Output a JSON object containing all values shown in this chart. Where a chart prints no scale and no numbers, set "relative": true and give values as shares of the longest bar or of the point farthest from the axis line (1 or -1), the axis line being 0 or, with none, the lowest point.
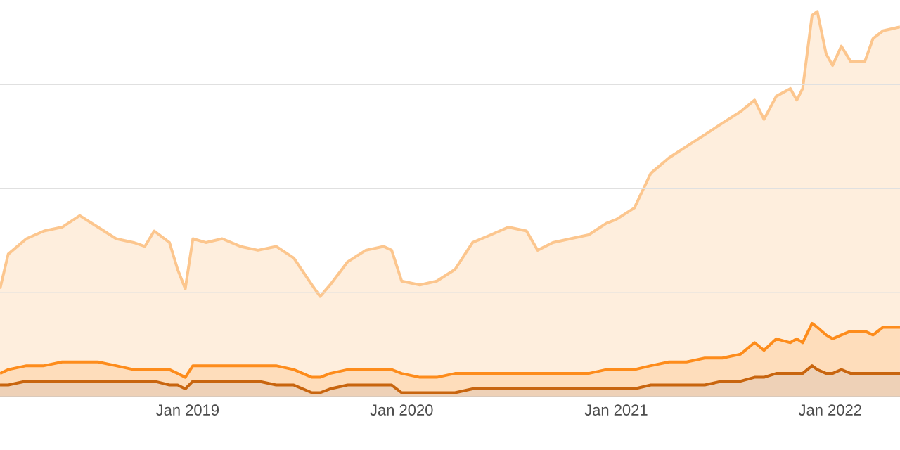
{
  "chart_data": {
    "type": "area",
    "relative": true,
    "grid": "y",
    "x": [
      "2018-02-15",
      "2018-03-01",
      "2018-04-01",
      "2018-05-01",
      "2018-06-01",
      "2018-07-01",
      "2018-08-01",
      "2018-09-01",
      "2018-10-01",
      "2018-10-20",
      "2018-11-05",
      "2018-12-01",
      "2018-12-15",
      "2018-12-28",
      "2019-01-10",
      "2019-02-01",
      "2019-03-01",
      "2019-04-01",
      "2019-05-01",
      "2019-06-01",
      "2019-07-01",
      "2019-08-01",
      "2019-08-15",
      "2019-09-01",
      "2019-10-01",
      "2019-11-01",
      "2019-12-01",
      "2019-12-15",
      "2020-01-01",
      "2020-02-01",
      "2020-03-01",
      "2020-04-01",
      "2020-05-01",
      "2020-06-01",
      "2020-07-01",
      "2020-08-01",
      "2020-08-20",
      "2020-09-15",
      "2020-10-15",
      "2020-11-15",
      "2020-12-15",
      "2021-01-01",
      "2021-02-01",
      "2021-03-01",
      "2021-04-01",
      "2021-05-01",
      "2021-06-01",
      "2021-07-01",
      "2021-08-01",
      "2021-08-25",
      "2021-09-10",
      "2021-10-01",
      "2021-10-25",
      "2021-11-05",
      "2021-11-15",
      "2021-12-01",
      "2021-12-10",
      "2021-12-25",
      "2022-01-05",
      "2022-01-20",
      "2022-02-05",
      "2022-03-01",
      "2022-03-15",
      "2022-04-01",
      "2022-04-30"
    ],
    "xlim": [
      "2018-02-15",
      "2022-04-30"
    ],
    "xticks": [
      {
        "value": "2019-01-01",
        "label": "Jan 2019"
      },
      {
        "value": "2020-01-01",
        "label": "Jan 2020"
      },
      {
        "value": "2021-01-01",
        "label": "Jan 2021"
      },
      {
        "value": "2022-01-01",
        "label": "Jan 2022"
      }
    ],
    "series": [
      {
        "color": "#fcc68e",
        "values": [
          0.28,
          0.37,
          0.41,
          0.43,
          0.44,
          0.47,
          0.44,
          0.41,
          0.4,
          0.39,
          0.43,
          0.4,
          0.33,
          0.28,
          0.41,
          0.4,
          0.41,
          0.39,
          0.38,
          0.39,
          0.36,
          0.29,
          0.26,
          0.29,
          0.35,
          0.38,
          0.39,
          0.38,
          0.3,
          0.29,
          0.3,
          0.33,
          0.4,
          0.42,
          0.44,
          0.43,
          0.38,
          0.4,
          0.41,
          0.42,
          0.45,
          0.46,
          0.49,
          0.58,
          0.62,
          0.65,
          0.68,
          0.71,
          0.74,
          0.77,
          0.72,
          0.78,
          0.8,
          0.77,
          0.8,
          0.99,
          1,
          0.89,
          0.86,
          0.91,
          0.87,
          0.87,
          0.93,
          0.95,
          0.96
        ]
      },
      {
        "color": "#fd8c1c",
        "values": [
          0.06,
          0.07,
          0.08,
          0.08,
          0.09,
          0.09,
          0.09,
          0.08,
          0.07,
          0.07,
          0.07,
          0.07,
          0.06,
          0.05,
          0.08,
          0.08,
          0.08,
          0.08,
          0.08,
          0.08,
          0.07,
          0.05,
          0.05,
          0.06,
          0.07,
          0.07,
          0.07,
          0.07,
          0.06,
          0.05,
          0.05,
          0.06,
          0.06,
          0.06,
          0.06,
          0.06,
          0.06,
          0.06,
          0.06,
          0.06,
          0.07,
          0.07,
          0.07,
          0.08,
          0.09,
          0.09,
          0.1,
          0.1,
          0.11,
          0.14,
          0.12,
          0.15,
          0.14,
          0.15,
          0.14,
          0.19,
          0.18,
          0.16,
          0.15,
          0.16,
          0.17,
          0.17,
          0.16,
          0.18,
          0.18
        ]
      },
      {
        "color": "#c8650f",
        "values": [
          0.03,
          0.03,
          0.04,
          0.04,
          0.04,
          0.04,
          0.04,
          0.04,
          0.04,
          0.04,
          0.04,
          0.03,
          0.03,
          0.02,
          0.04,
          0.04,
          0.04,
          0.04,
          0.04,
          0.03,
          0.03,
          0.01,
          0.01,
          0.02,
          0.03,
          0.03,
          0.03,
          0.03,
          0.01,
          0.01,
          0.01,
          0.01,
          0.02,
          0.02,
          0.02,
          0.02,
          0.02,
          0.02,
          0.02,
          0.02,
          0.02,
          0.02,
          0.02,
          0.03,
          0.03,
          0.03,
          0.03,
          0.04,
          0.04,
          0.05,
          0.05,
          0.06,
          0.06,
          0.06,
          0.06,
          0.08,
          0.07,
          0.06,
          0.06,
          0.07,
          0.06,
          0.06,
          0.06,
          0.06,
          0.06
        ]
      }
    ]
  }
}
